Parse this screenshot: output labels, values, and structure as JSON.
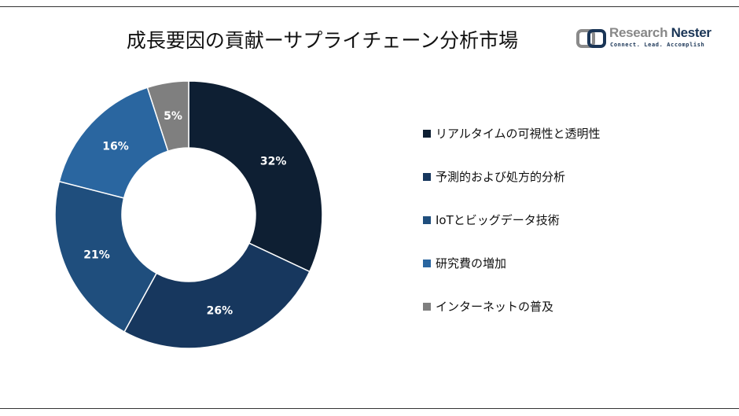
{
  "title": "成長要因の貢献ーサプライチェーン分析市場",
  "logo": {
    "name_part1": "Research",
    "name_part2": "Nester",
    "tagline": "Connect. Lead. Accomplish"
  },
  "chart_data": {
    "type": "pie",
    "donut": true,
    "title": "成長要因の貢献ーサプライチェーン分析市場",
    "categories": [
      "リアルタイムの可視性と透明性",
      "予測的および処方的分析",
      "IoTとビッグデータ技術",
      "研究費の増加",
      "インターネットの普及"
    ],
    "values": [
      32,
      26,
      21,
      16,
      5
    ],
    "labels": [
      "32%",
      "26%",
      "21%",
      "16%",
      "5%"
    ],
    "colors": [
      "#0e1f33",
      "#17375e",
      "#1f4e7d",
      "#2a66a0",
      "#7f7f7f"
    ],
    "legend": "right"
  }
}
